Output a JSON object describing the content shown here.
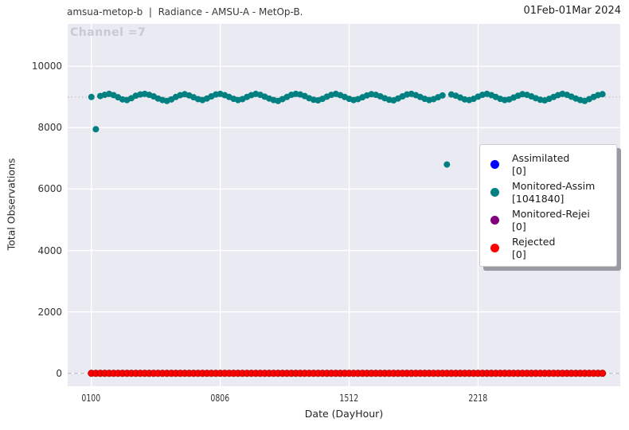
{
  "header": {
    "left": "amsua-metop-b  |  Radiance - AMSU-A - MetOp-B.",
    "right": "01Feb-01Mar 2024"
  },
  "chart_data": {
    "type": "scatter",
    "title": "Channel =7",
    "xlabel": "Date (DayHour)",
    "ylabel": "Total Observations",
    "x_tick_labels": [
      "0100",
      "0806",
      "1512",
      "2218"
    ],
    "x_tick_hours": [
      0,
      174,
      348,
      522
    ],
    "y_ticks": [
      0,
      2000,
      4000,
      6000,
      8000,
      10000
    ],
    "xlim_hours": [
      -32,
      714
    ],
    "ylim": [
      -420,
      11380
    ],
    "x_start_label": "Feb 1 00h",
    "x_step_hours": 6,
    "n_points": 116,
    "grid": true,
    "plot_bg": "#eaeaf2",
    "grid_color": "#ffffff",
    "reference_lines": [
      {
        "y": 9000,
        "style": "dotted",
        "color": "#c2c2c8"
      },
      {
        "y": 0,
        "style": "dashed",
        "color": "#c2c2c8"
      }
    ],
    "legend_position": "right-middle",
    "series": [
      {
        "name": "Assimilated",
        "count_label": "[0]",
        "color": "#0000ff",
        "values": []
      },
      {
        "name": "Monitored-Assim",
        "count_label": "[1041840]",
        "color": "#008080",
        "values": [
          9000,
          7950,
          9030,
          9070,
          9100,
          9060,
          8990,
          8920,
          8900,
          8960,
          9040,
          9080,
          9100,
          9070,
          9020,
          8950,
          8900,
          8870,
          8920,
          9000,
          9060,
          9090,
          9050,
          8990,
          8930,
          8900,
          8950,
          9020,
          9080,
          9100,
          9060,
          9000,
          8940,
          8900,
          8930,
          9000,
          9060,
          9100,
          9070,
          9010,
          8950,
          8900,
          8870,
          8930,
          9000,
          9070,
          9100,
          9080,
          9030,
          8960,
          8910,
          8890,
          8940,
          9010,
          9070,
          9100,
          9060,
          9000,
          8940,
          8900,
          8930,
          8990,
          9050,
          9090,
          9070,
          9020,
          8960,
          8910,
          8890,
          8950,
          9020,
          9080,
          9100,
          9060,
          9000,
          8940,
          8900,
          8930,
          8990,
          9050,
          6800,
          9080,
          9040,
          8980,
          8920,
          8900,
          8940,
          9010,
          9070,
          9100,
          9060,
          9000,
          8940,
          8900,
          8920,
          8980,
          9040,
          9090,
          9070,
          9020,
          8960,
          8910,
          8890,
          8940,
          9000,
          9060,
          9100,
          9070,
          9010,
          8950,
          8900,
          8870,
          8930,
          9000,
          9060,
          9090
        ]
      },
      {
        "name": "Monitored-Rejei",
        "count_label": "[0]",
        "color": "#800080",
        "values": []
      },
      {
        "name": "Rejected",
        "count_label": "[0]",
        "color": "#ff0000",
        "edge_color": "#c00000",
        "constant_value": 0,
        "values": []
      }
    ]
  }
}
